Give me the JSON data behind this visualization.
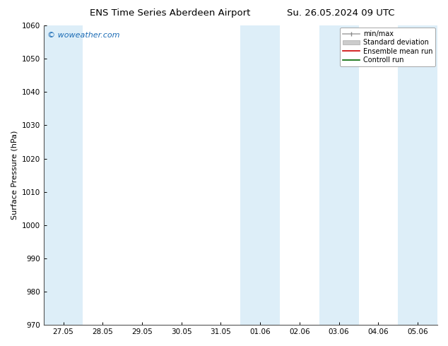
{
  "title_left": "ENS Time Series Aberdeen Airport",
  "title_right": "Su. 26.05.2024 09 UTC",
  "ylabel": "Surface Pressure (hPa)",
  "ylim": [
    970,
    1060
  ],
  "yticks": [
    970,
    980,
    990,
    1000,
    1010,
    1020,
    1030,
    1040,
    1050,
    1060
  ],
  "xtick_labels": [
    "27.05",
    "28.05",
    "29.05",
    "30.05",
    "31.05",
    "01.06",
    "02.06",
    "03.06",
    "04.06",
    "05.06"
  ],
  "xtick_positions": [
    0,
    1,
    2,
    3,
    4,
    5,
    6,
    7,
    8,
    9
  ],
  "xlim": [
    -0.5,
    9.5
  ],
  "shaded_bands": [
    {
      "x_start": -0.5,
      "x_end": 0.5,
      "color": "#ddeef8"
    },
    {
      "x_start": 4.5,
      "x_end": 5.5,
      "color": "#ddeef8"
    },
    {
      "x_start": 6.5,
      "x_end": 7.5,
      "color": "#ddeef8"
    },
    {
      "x_start": 8.5,
      "x_end": 9.5,
      "color": "#ddeef8"
    }
  ],
  "watermark_text": "© woweather.com",
  "watermark_color": "#1a6bb5",
  "legend_entries": [
    {
      "label": "min/max"
    },
    {
      "label": "Standard deviation"
    },
    {
      "label": "Ensemble mean run"
    },
    {
      "label": "Controll run"
    }
  ],
  "background_color": "#ffffff",
  "plot_bg_color": "#ffffff",
  "title_fontsize": 9.5,
  "ylabel_fontsize": 8,
  "tick_fontsize": 7.5,
  "watermark_fontsize": 8,
  "legend_fontsize": 7
}
